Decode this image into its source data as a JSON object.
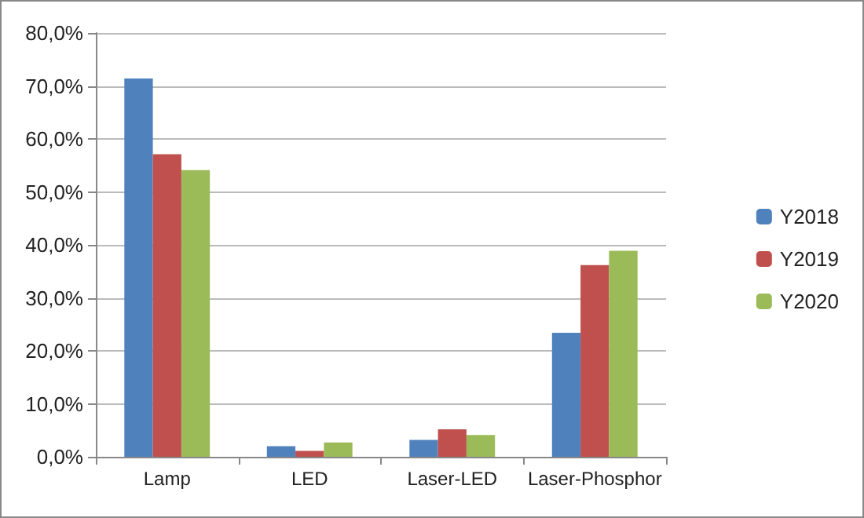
{
  "chart_data": {
    "type": "bar",
    "categories": [
      "Lamp",
      "LED",
      "Laser-LED",
      "Laser-Phosphor"
    ],
    "series": [
      {
        "name": "Y2018",
        "color": "#4f81bd",
        "values": [
          71.4,
          2.0,
          3.2,
          23.4
        ]
      },
      {
        "name": "Y2019",
        "color": "#c0504d",
        "values": [
          57.1,
          1.1,
          5.2,
          36.2
        ]
      },
      {
        "name": "Y2020",
        "color": "#9bbb59",
        "values": [
          54.1,
          2.7,
          4.1,
          38.9
        ]
      }
    ],
    "ylim": [
      0,
      80
    ],
    "yticks": [
      {
        "value": 0,
        "label": "0,0%"
      },
      {
        "value": 10,
        "label": "10,0%"
      },
      {
        "value": 20,
        "label": "20,0%"
      },
      {
        "value": 30,
        "label": "30,0%"
      },
      {
        "value": 40,
        "label": "40,0%"
      },
      {
        "value": 50,
        "label": "50,0%"
      },
      {
        "value": 60,
        "label": "60,0%"
      },
      {
        "value": 70,
        "label": "70,0%"
      },
      {
        "value": 80,
        "label": "80,0%"
      }
    ],
    "grid": "y",
    "legend": "right"
  }
}
